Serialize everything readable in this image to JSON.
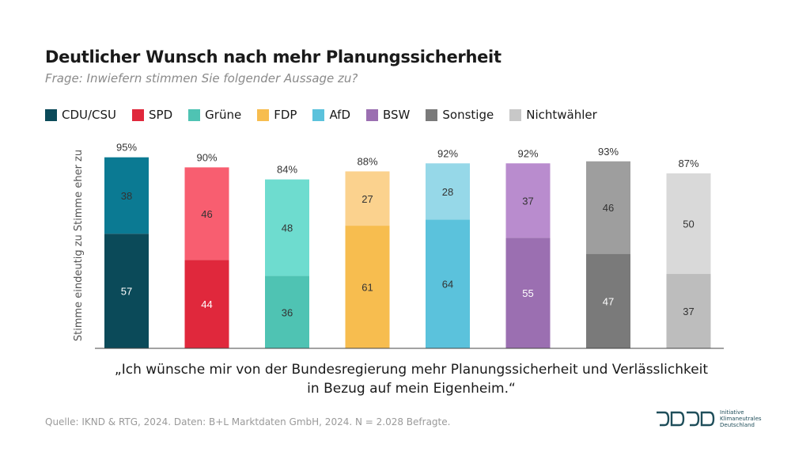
{
  "header": {
    "title": "Deutlicher Wunsch nach mehr Planungssicherheit",
    "subtitle": "Frage: Inwiefern stimmen Sie folgender Aussage zu?"
  },
  "legend": [
    {
      "label": "CDU/CSU",
      "color": "#0b4a59"
    },
    {
      "label": "SPD",
      "color": "#e0283c"
    },
    {
      "label": "Grüne",
      "color": "#4fc3b3"
    },
    {
      "label": "FDP",
      "color": "#f7bd4f"
    },
    {
      "label": "AfD",
      "color": "#5bc2dc"
    },
    {
      "label": "BSW",
      "color": "#9b6fb1"
    },
    {
      "label": "Sonstige",
      "color": "#7a7a7a"
    },
    {
      "label": "Nichtwähler",
      "color": "#c8c8c8"
    }
  ],
  "chart_data": {
    "type": "bar",
    "stacked": true,
    "categories": [
      "CDU/CSU",
      "SPD",
      "Grüne",
      "FDP",
      "AfD",
      "BSW",
      "Sonstige",
      "Nichtwähler"
    ],
    "series": [
      {
        "name": "Stimme eindeutig zu",
        "values": [
          57,
          44,
          36,
          61,
          64,
          55,
          47,
          37
        ],
        "colors": [
          "#0b4a59",
          "#e0283c",
          "#4fc3b3",
          "#f7bd4f",
          "#5bc2dc",
          "#9b6fb1",
          "#7a7a7a",
          "#bdbdbd"
        ]
      },
      {
        "name": "Stimme eher zu",
        "values": [
          38,
          46,
          48,
          27,
          28,
          37,
          46,
          50
        ],
        "colors": [
          "#0b7a93",
          "#f85e70",
          "#6edccf",
          "#fbd28e",
          "#96d8e8",
          "#b98cce",
          "#9e9e9e",
          "#d9d9d9"
        ]
      }
    ],
    "totals": [
      "95%",
      "90%",
      "84%",
      "88%",
      "92%",
      "92%",
      "93%",
      "87%"
    ],
    "ylabel": "Stimme eindeutig zu   Stimme eher zu",
    "ylim": [
      0,
      100
    ],
    "grid": false,
    "legend_position": "top-left"
  },
  "caption": {
    "line1": "„Ich wünsche mir von der Bundesregierung mehr Planungssicherheit und Verlässlichkeit",
    "line2": "in Bezug auf mein Eigenheim.“"
  },
  "footer": {
    "source": "Quelle: IKND & RTG, 2024. Daten: B+L  Marktdaten GmbH, 2024. N = 2.028 Befragte.",
    "logo_text": [
      "Initiative",
      "Klimaneutrales",
      "Deutschland"
    ],
    "logo_color": "#1f4e5a"
  }
}
